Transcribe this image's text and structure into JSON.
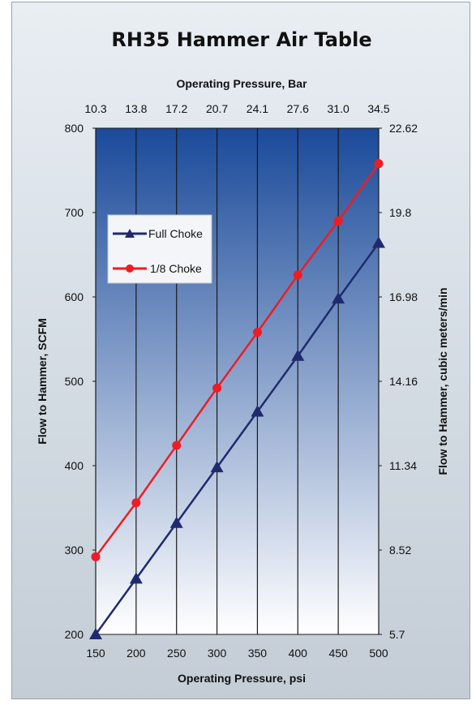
{
  "colors": {
    "full_choke": "#1f2a6e",
    "eighth_choke": "#ee1c24",
    "plot_top": "#1a4a9a",
    "plot_bottom": "#ffffff",
    "grid": "#1a1a1a"
  },
  "chart_data": {
    "type": "line",
    "title": "RH35 Hammer Air Table",
    "xlabel": "Operating Pressure, psi",
    "x2label": "Operating Pressure, Bar",
    "ylabel": "Flow to Hammer, SCFM",
    "y2label": "Flow to Hammer, cubic meters/min",
    "x": [
      150,
      200,
      250,
      300,
      350,
      400,
      450,
      500
    ],
    "xlim": [
      150,
      500
    ],
    "ylim": [
      200,
      800
    ],
    "x_ticks": [
      "150",
      "200",
      "250",
      "300",
      "350",
      "400",
      "450",
      "500"
    ],
    "x2_ticks": [
      "10.3",
      "13.8",
      "17.2",
      "20.7",
      "24.1",
      "27.6",
      "31.0",
      "34.5"
    ],
    "y_ticks": [
      "200",
      "300",
      "400",
      "500",
      "600",
      "700",
      "800"
    ],
    "y2_ticks": [
      "5.7",
      "8.52",
      "11.34",
      "14.16",
      "16.98",
      "19.8",
      "22.62"
    ],
    "series": [
      {
        "name": "Full Choke",
        "marker": "triangle",
        "color": "#1f2a6e",
        "values": [
          200,
          266,
          332,
          398,
          464,
          530,
          598,
          664
        ]
      },
      {
        "name": "1/8 Choke",
        "marker": "circle",
        "color": "#ee1c24",
        "values": [
          292,
          356,
          424,
          492,
          558,
          626,
          690,
          758
        ]
      }
    ],
    "legend": "upper-left inside plot",
    "grid": "vertical"
  }
}
